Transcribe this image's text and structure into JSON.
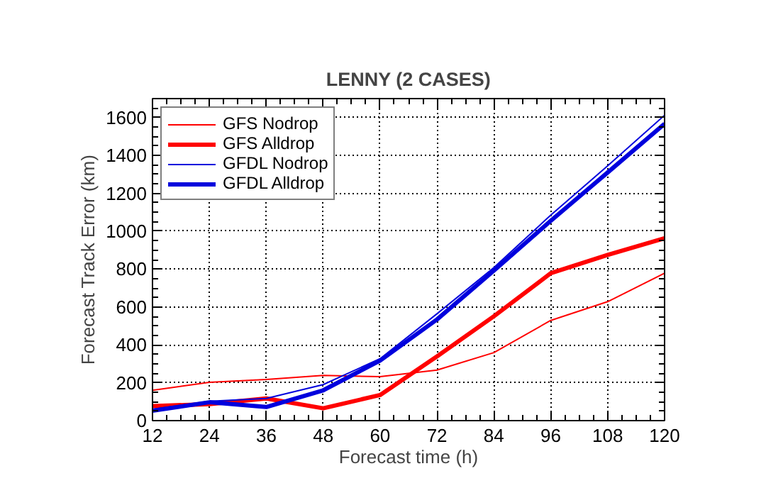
{
  "chart_data": {
    "type": "line",
    "title": "LENNY (2 CASES)",
    "xlabel": "Forecast time (h)",
    "ylabel": "Forecast Track Error (km)",
    "x": [
      12,
      24,
      36,
      48,
      60,
      72,
      84,
      96,
      108,
      120
    ],
    "series": [
      {
        "name": "GFS Nodrop",
        "color": "#ff0000",
        "values": [
          160,
          202,
          217,
          239,
          232,
          267,
          359,
          529,
          628,
          778
        ]
      },
      {
        "name": "GFS Alldrop",
        "color": "#ff0000",
        "values": [
          77,
          87,
          117,
          65,
          135,
          339,
          551,
          778,
          875,
          963
        ]
      },
      {
        "name": "GFDL Nodrop",
        "color": "#0000dd",
        "values": [
          60,
          102,
          117,
          190,
          327,
          564,
          808,
          1085,
          1345,
          1612
        ]
      },
      {
        "name": "GFDL Alldrop",
        "color": "#0000dd",
        "values": [
          52,
          97,
          72,
          160,
          317,
          534,
          792,
          1055,
          1310,
          1567
        ]
      }
    ],
    "xlim": [
      12,
      120
    ],
    "ylim": [
      0,
      1700
    ],
    "xticks": [
      12,
      24,
      36,
      48,
      60,
      72,
      84,
      96,
      108,
      120
    ],
    "yticks": [
      0,
      200,
      400,
      600,
      800,
      1000,
      1200,
      1400,
      1600
    ],
    "grid": true,
    "legend": "top left",
    "line_style": "solid"
  }
}
